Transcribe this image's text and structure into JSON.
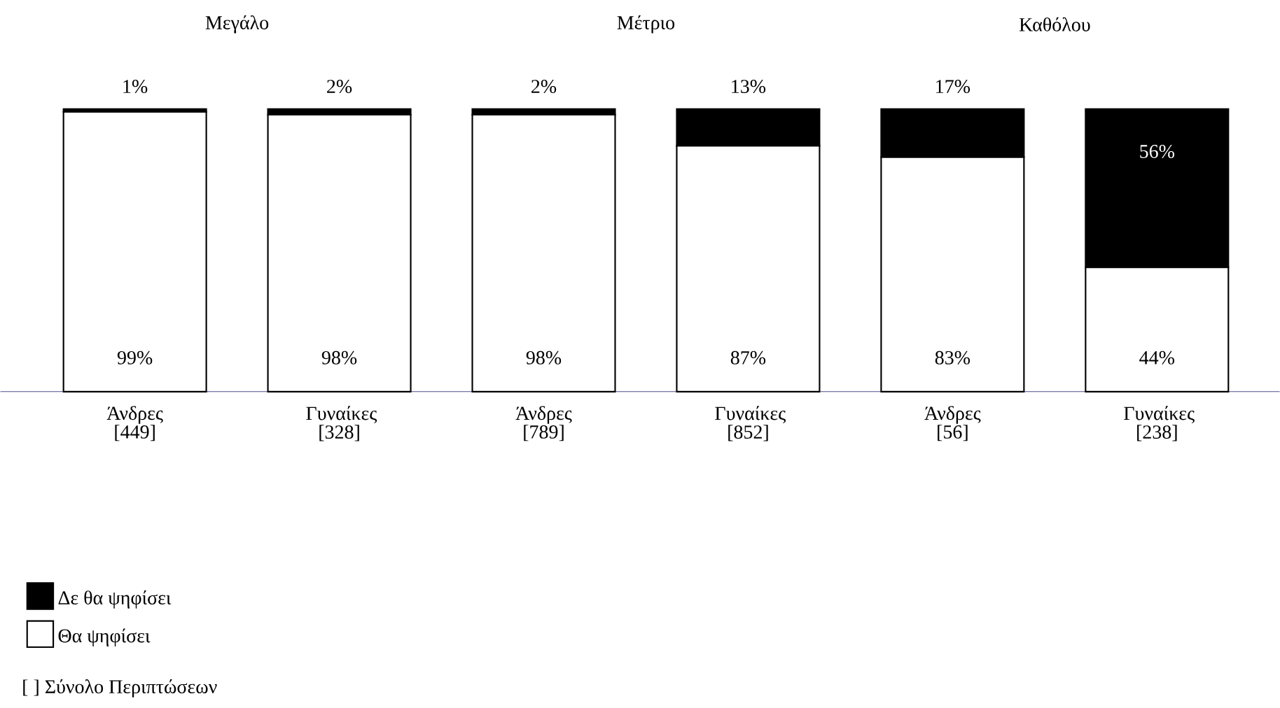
{
  "chart_data": {
    "type": "bar",
    "stacked": true,
    "categories": [
      "Άνδρες [449]",
      "Γυναίκες [328]",
      "Άνδρες [789]",
      "Γυναίκες [852]",
      "Άνδρες [56]",
      "Γυναίκες [238]"
    ],
    "series": [
      {
        "name": "Θα ψηφίσει",
        "color": "#ffffff",
        "values": [
          99,
          98,
          98,
          87,
          83,
          44
        ],
        "value_labels": [
          "99%",
          "98%",
          "98%",
          "87%",
          "83%",
          "44%"
        ]
      },
      {
        "name": "Δε θα ψηφίσει",
        "color": "#000000",
        "values": [
          1,
          2,
          2,
          13,
          17,
          56
        ],
        "value_labels": [
          "1%",
          "2%",
          "2%",
          "13%",
          "17%",
          "56%"
        ]
      }
    ],
    "legend": "bottom left",
    "annotations": [
      "Μεγάλο",
      "Μέτριο",
      "Καθόλου",
      "[ ] Σύνολο Περιπτώσεων"
    ]
  }
}
